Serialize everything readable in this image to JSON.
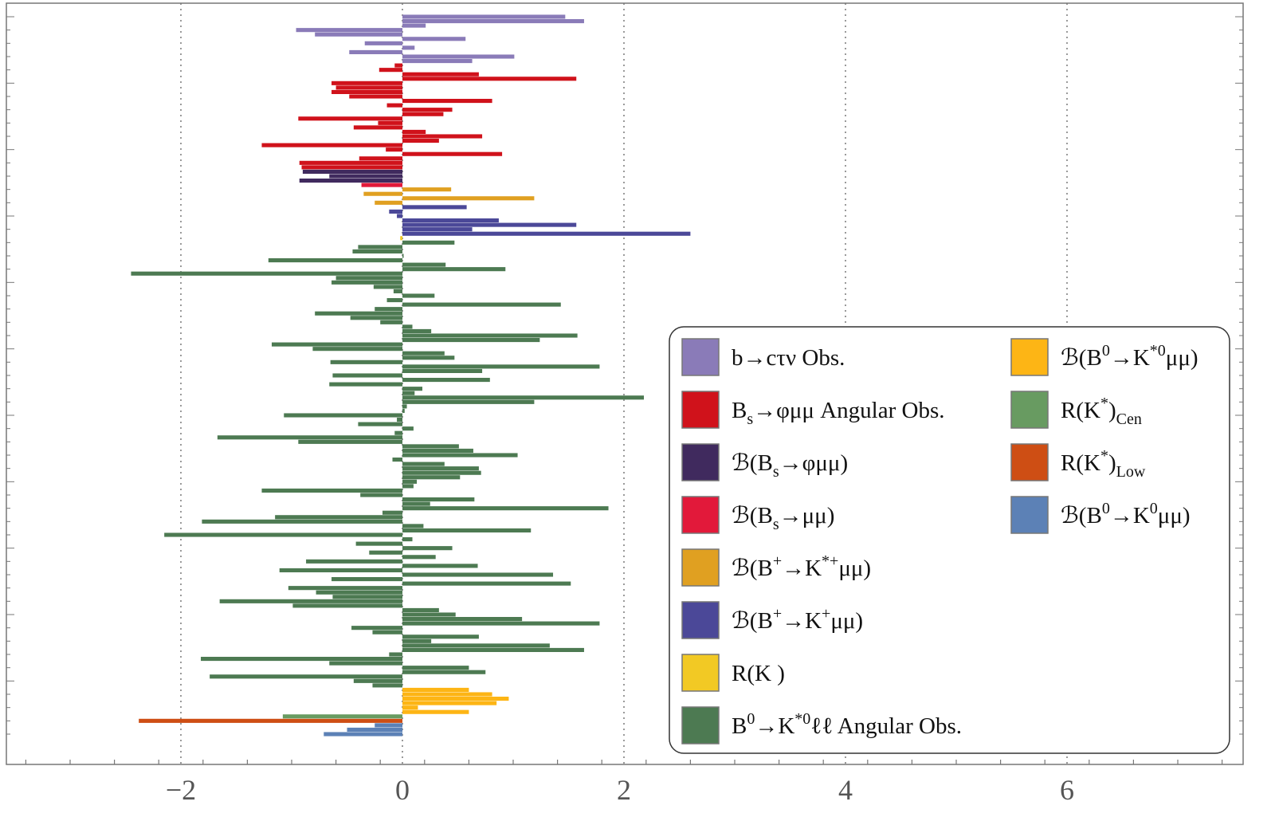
{
  "chart_data": {
    "type": "bar",
    "orientation": "horizontal",
    "title": "",
    "xlabel": "",
    "ylabel": "",
    "xlim": [
      -3.5,
      7.4
    ],
    "grid": {
      "x_dashed_at": [
        -2,
        0,
        2,
        4,
        6
      ]
    },
    "x_ticks": [
      {
        "value": -2,
        "label": "−2"
      },
      {
        "value": 0,
        "label": "0"
      },
      {
        "value": 2,
        "label": "2"
      },
      {
        "value": 4,
        "label": "4"
      },
      {
        "value": 6,
        "label": "6"
      }
    ],
    "legend": {
      "placement": "bottom-right",
      "entries": [
        {
          "key": "btau",
          "pre": "b→cτν Obs.",
          "sup": "",
          "mid": "",
          "sub": "",
          "post": "",
          "color": "#8A7BB8"
        },
        {
          "key": "bsang",
          "pre": "B",
          "sub": "s",
          "mid": "→φμμ Angular Obs.",
          "sup": "",
          "post": "",
          "color": "#D0121B"
        },
        {
          "key": "brbs",
          "pre": "ℬ(B",
          "sub": "s",
          "mid": "→φμμ)",
          "sup": "",
          "post": "",
          "color": "#402A5E"
        },
        {
          "key": "brmm",
          "pre": "ℬ(B",
          "sub": "s",
          "mid": "→μμ)",
          "sup": "",
          "post": "",
          "color": "#E2193A"
        },
        {
          "key": "brkst",
          "pre": "ℬ(B",
          "sup": "+",
          "mid": "→K",
          "sup2": "*+",
          "post": "μμ)",
          "sub": "",
          "color": "#E0A021"
        },
        {
          "key": "brk",
          "pre": "ℬ(B",
          "sup": "+",
          "mid": "→K",
          "sup2": "+",
          "post": "μμ)",
          "sub": "",
          "color": "#4B4898"
        },
        {
          "key": "rk",
          "pre": "R(K )",
          "sup": "",
          "mid": "",
          "sub": "",
          "post": "",
          "color": "#F2C924"
        },
        {
          "key": "ang",
          "pre": "B",
          "sup": "0",
          "mid": "→K",
          "sup2": "*0",
          "post": "ℓℓ Angular Obs.",
          "sub": "",
          "color": "#4D7A52"
        },
        {
          "key": "brk0s",
          "pre": "ℬ(B",
          "sup": "0",
          "mid": "→K",
          "sup2": "*0",
          "post": "μμ)",
          "sub": "",
          "color": "#FDB515"
        },
        {
          "key": "rkcen",
          "pre": "R(K",
          "sup": "*",
          "mid": ")",
          "sub": "Cen",
          "post": "",
          "color": "#689B61"
        },
        {
          "key": "rklow",
          "pre": "R(K",
          "sup": "*",
          "mid": ")",
          "sub": "Low",
          "post": "",
          "color": "#CE4E14"
        },
        {
          "key": "brk0",
          "pre": "ℬ(B",
          "sup": "0",
          "mid": "→K",
          "sup2": "0",
          "post": "μμ)",
          "sub": "",
          "color": "#5C81B6"
        }
      ]
    },
    "series": [
      {
        "name": "b→cτν Obs.",
        "key": "btau",
        "values": [
          1.47,
          1.64,
          0.21,
          -0.96,
          -0.79,
          0.57,
          -0.34,
          0.11,
          -0.48,
          1.01,
          0.63
        ]
      },
      {
        "name": "Bs→φμμ Angular Obs.",
        "key": "bsang",
        "values": [
          -0.07,
          -0.21,
          0.69,
          1.57,
          -0.64,
          -0.6,
          -0.64,
          -0.48,
          0.81,
          -0.14,
          0.45,
          0.37,
          -0.94,
          -0.22,
          -0.44,
          0.21,
          0.72,
          0.33,
          -1.27,
          -0.15,
          0.9,
          -0.39,
          -0.93,
          -0.91
        ]
      },
      {
        "name": "ℬ(Bs→φμμ)",
        "key": "brbs",
        "values": [
          -0.9,
          -0.66,
          -0.93
        ]
      },
      {
        "name": "ℬ(Bs→μμ)",
        "key": "brmm",
        "values": [
          -0.37
        ]
      },
      {
        "name": "ℬ(B+→K*+μμ)",
        "key": "brkst",
        "values": [
          0.44,
          -0.35,
          1.19,
          -0.25
        ]
      },
      {
        "name": "ℬ(B+→K+μμ)",
        "key": "brk",
        "values": [
          0.58,
          -0.12,
          -0.05,
          0.87,
          1.57,
          0.63,
          2.6
        ]
      },
      {
        "name": "R(K )",
        "key": "rk",
        "values": [
          -0.02
        ]
      },
      {
        "name": "B0→K*0ℓℓ Angular Obs.",
        "key": "ang",
        "values": [
          0.47,
          -0.4,
          -0.45,
          0.0,
          -1.21,
          0.39,
          0.93,
          -2.45,
          -0.6,
          -0.64,
          -0.26,
          -0.08,
          0.29,
          -0.14,
          1.43,
          -0.25,
          -0.79,
          -0.47,
          -0.2,
          0.09,
          0.26,
          1.58,
          1.24,
          -1.18,
          -0.81,
          0.38,
          0.47,
          -0.65,
          1.78,
          0.72,
          -0.63,
          0.79,
          -0.66,
          0.18,
          0.11,
          2.18,
          1.19,
          0.04,
          0.02,
          -1.07,
          -0.05,
          -0.4,
          0.1,
          -0.07,
          -1.67,
          -0.94,
          0.51,
          0.64,
          1.04,
          -0.09,
          0.38,
          0.69,
          0.71,
          0.52,
          0.13,
          0.1,
          -1.27,
          -0.38,
          0.65,
          0.25,
          1.86,
          -0.18,
          -1.15,
          -1.81,
          0.19,
          1.16,
          -2.15,
          0.09,
          -0.42,
          0.45,
          -0.3,
          0.3,
          -0.87,
          0.68,
          -1.11,
          1.36,
          -0.64,
          1.52,
          -1.03,
          -0.78,
          -0.63,
          -1.65,
          -0.99,
          0.33,
          0.48,
          1.08,
          1.78,
          -0.46,
          -0.27,
          0.69,
          0.26,
          1.33,
          1.64,
          -0.12,
          -1.82,
          -0.66,
          0.6,
          0.75,
          -1.74,
          -0.44,
          -0.27
        ]
      },
      {
        "name": "ℬ(B0→K*0μμ)",
        "key": "brk0s",
        "values": [
          0.6,
          0.81,
          0.96,
          0.85,
          0.14,
          0.6
        ]
      },
      {
        "name": "R(K*)Cen",
        "key": "rkcen",
        "values": [
          -1.08
        ]
      },
      {
        "name": "R(K*)Low",
        "key": "rklow",
        "values": [
          -2.38
        ]
      },
      {
        "name": "ℬ(B0→K0μμ)",
        "key": "brk0",
        "values": [
          -0.25,
          -0.5,
          -0.71
        ]
      }
    ]
  }
}
